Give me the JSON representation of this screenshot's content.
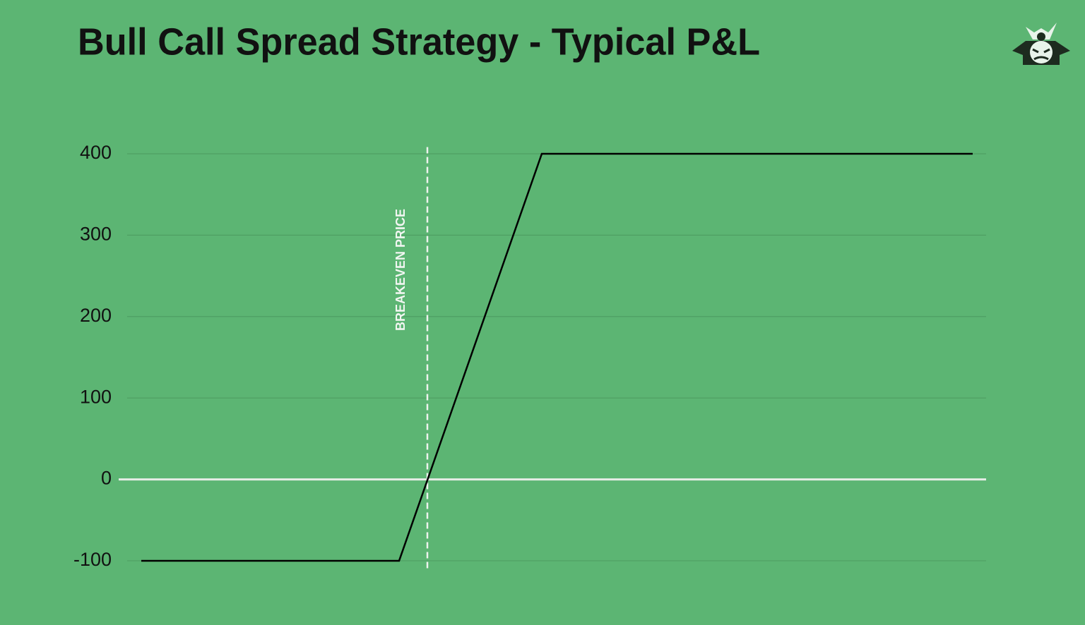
{
  "chart_data": {
    "type": "line",
    "title": "Bull Call Spread Strategy - Typical P&L",
    "x": [
      30,
      395,
      597,
      1207
    ],
    "series": [
      {
        "color": "#000000",
        "values": [
          -100,
          -100,
          400,
          400
        ]
      }
    ],
    "xlim": [
      0,
      1226
    ],
    "ylim": [
      -110,
      410
    ],
    "yticks": [
      -100,
      0,
      100,
      200,
      300,
      400
    ],
    "grid": true,
    "annotations": [
      {
        "text": "BREAKEVEN PRICE",
        "x": 435
      }
    ]
  }
}
